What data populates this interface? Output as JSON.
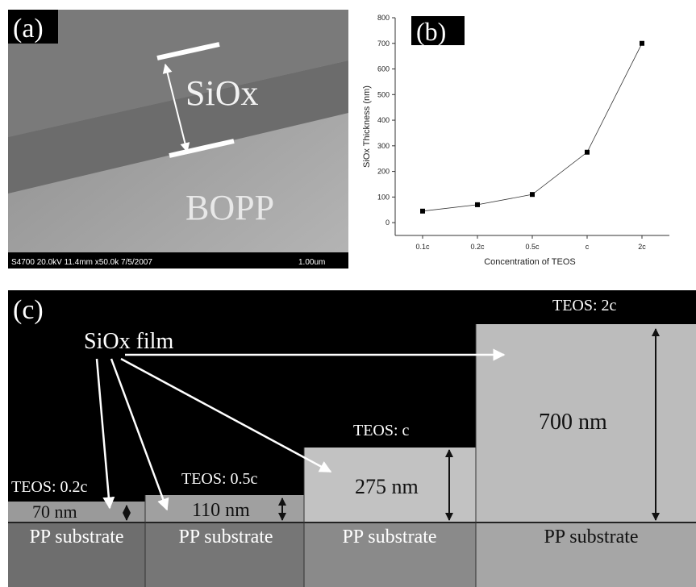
{
  "panel_a": {
    "label": "(a)",
    "film_label": "SiOx",
    "substrate_label": "BOPP",
    "info_bar": "S4700 20.0kV 11.4mm x50.0k 7/5/2007",
    "scale_label": "1.00um"
  },
  "chart_data": {
    "type": "line",
    "label": "(b)",
    "x_label": "Concentration of TEOS",
    "y_label": "SiOx Thickness (nm)",
    "categories": [
      "0.1c",
      "0.2c",
      "0.5c",
      "c",
      "2c"
    ],
    "values": [
      45,
      70,
      110,
      275,
      700
    ],
    "color": "#333333",
    "ylim": [
      -50,
      800
    ],
    "yticks": [
      0,
      100,
      200,
      300,
      400,
      500,
      600,
      700,
      800
    ]
  },
  "panel_c": {
    "label": "(c)",
    "film_label": "SiOx film",
    "samples": [
      {
        "teos": "TEOS: 0.2c",
        "thickness": "70 nm",
        "substrate": "PP substrate"
      },
      {
        "teos": "TEOS: 0.5c",
        "thickness": "110 nm",
        "substrate": "PP substrate"
      },
      {
        "teos": "TEOS: c",
        "thickness": "275 nm",
        "substrate": "PP substrate"
      },
      {
        "teos": "TEOS: 2c",
        "thickness": "700 nm",
        "substrate": "PP substrate"
      }
    ]
  }
}
